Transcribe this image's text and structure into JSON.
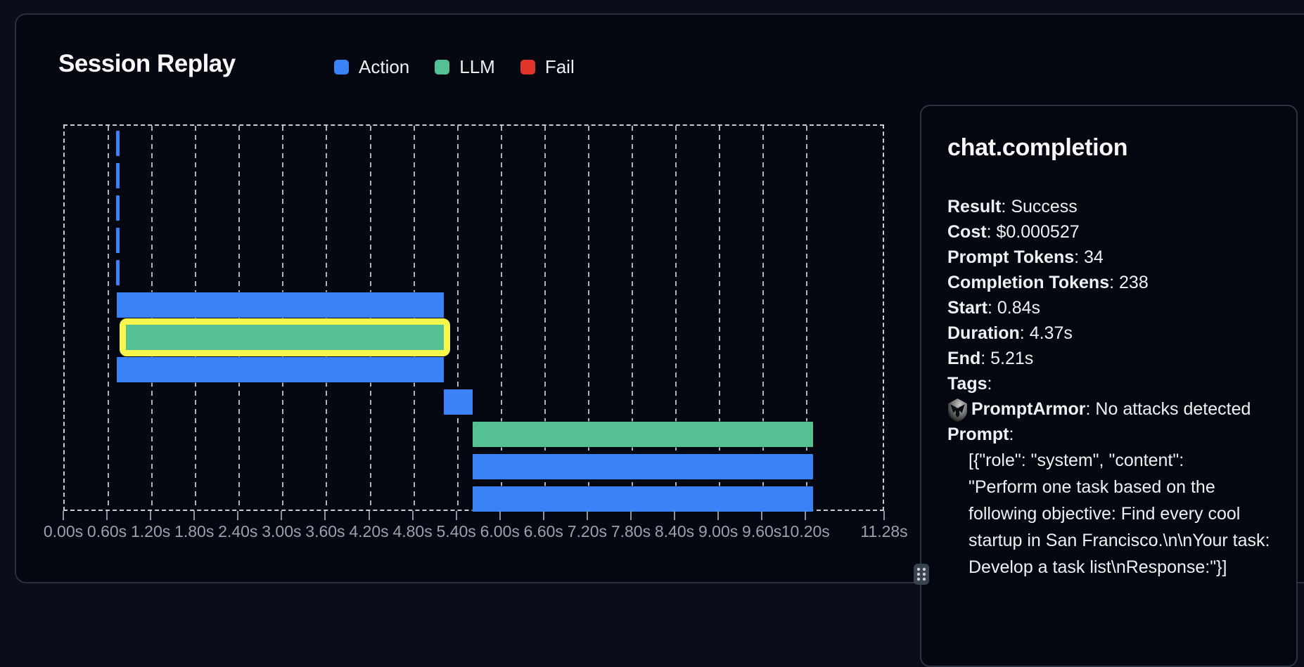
{
  "header": {
    "title": "Session Replay"
  },
  "legend": [
    {
      "label": "Action",
      "color": "#3b82f6"
    },
    {
      "label": "LLM",
      "color": "#54c094"
    },
    {
      "label": "Fail",
      "color": "#e0352c"
    }
  ],
  "chart_data": {
    "type": "bar",
    "variant": "horizontal-timeline-gantt",
    "title": "Session Replay",
    "x_unit": "s",
    "x_range": [
      0,
      11.28
    ],
    "grid": "vertical-dashed",
    "legend_position": "top",
    "colors": {
      "Action": "#3b82f6",
      "LLM": "#54c094",
      "Fail": "#e0352c",
      "selected_outline": "#f6f74c"
    },
    "ticks": [
      {
        "label": "0.00s",
        "t": 0.0
      },
      {
        "label": "0.60s",
        "t": 0.6
      },
      {
        "label": "1.20s",
        "t": 1.2
      },
      {
        "label": "1.80s",
        "t": 1.8
      },
      {
        "label": "2.40s",
        "t": 2.4
      },
      {
        "label": "3.00s",
        "t": 3.0
      },
      {
        "label": "3.60s",
        "t": 3.6
      },
      {
        "label": "4.20s",
        "t": 4.2
      },
      {
        "label": "4.80s",
        "t": 4.8
      },
      {
        "label": "5.40s",
        "t": 5.4
      },
      {
        "label": "6.00s",
        "t": 6.0
      },
      {
        "label": "6.60s",
        "t": 6.6
      },
      {
        "label": "7.20s",
        "t": 7.2
      },
      {
        "label": "7.80s",
        "t": 7.8
      },
      {
        "label": "8.40s",
        "t": 8.4
      },
      {
        "label": "9.00s",
        "t": 9.0
      },
      {
        "label": "9.60s",
        "t": 9.6
      },
      {
        "label": "10.20s",
        "t": 10.2
      },
      {
        "label": "11.28s",
        "t": 11.28
      }
    ],
    "rows": [
      {
        "type": "Action",
        "start": 0.71,
        "end": 0.75
      },
      {
        "type": "Action",
        "start": 0.71,
        "end": 0.75
      },
      {
        "type": "Action",
        "start": 0.71,
        "end": 0.75
      },
      {
        "type": "Action",
        "start": 0.71,
        "end": 0.75
      },
      {
        "type": "Action",
        "start": 0.71,
        "end": 0.75
      },
      {
        "type": "Action",
        "start": 0.72,
        "end": 5.21
      },
      {
        "type": "LLM",
        "start": 0.84,
        "end": 5.21,
        "selected": true,
        "name": "chat.completion"
      },
      {
        "type": "Action",
        "start": 0.72,
        "end": 5.21
      },
      {
        "type": "Action",
        "start": 5.21,
        "end": 5.61
      },
      {
        "type": "LLM",
        "start": 5.61,
        "end": 10.28
      },
      {
        "type": "Action",
        "start": 5.61,
        "end": 10.28
      },
      {
        "type": "Action",
        "start": 5.61,
        "end": 10.28
      }
    ]
  },
  "detail_panel": {
    "title": "chat.completion",
    "separator": ": ",
    "fields": [
      {
        "label": "Result",
        "value": "Success"
      },
      {
        "label": "Cost",
        "value": "$0.000527"
      },
      {
        "label": "Prompt Tokens",
        "value": "34"
      },
      {
        "label": "Completion Tokens",
        "value": "238"
      },
      {
        "label": "Start",
        "value": "0.84s"
      },
      {
        "label": "Duration",
        "value": "4.37s"
      },
      {
        "label": "End",
        "value": "5.21s"
      },
      {
        "label": "Tags",
        "value": ""
      },
      {
        "label": "PromptArmor",
        "value": "No attacks detected",
        "icon": "promptarmor-shield-icon"
      }
    ],
    "prompt_label": "Prompt",
    "prompt_lines": [
      "[{\"role\": \"system\", \"content\":",
      "\"Perform one task based on the",
      "following objective: Find every cool",
      "startup in San Francisco.\\n\\nYour task:",
      "Develop a task list\\nResponse:\"}]"
    ]
  }
}
